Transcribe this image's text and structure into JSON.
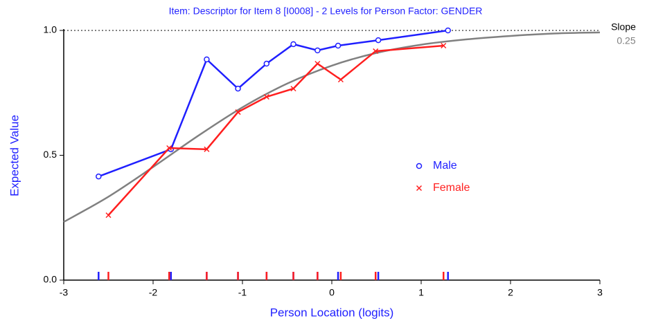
{
  "chart_data": {
    "type": "line",
    "title": "Item: Descriptor for Item 8 [I0008] - 2 Levels for Person Factor: GENDER",
    "x_label": "Person Location (logits)",
    "y_label": "Expected Value",
    "slope_label": "Slope",
    "slope": 0.25,
    "xlim": [
      -3,
      3
    ],
    "xticks": [
      -3,
      -2,
      -1,
      0,
      1,
      2,
      3
    ],
    "ylim": [
      0,
      1
    ],
    "yticks": [
      {
        "value": 0,
        "label": "0.0"
      },
      {
        "value": 0.5,
        "label": "0.5"
      },
      {
        "value": 1,
        "label": "1.0"
      }
    ],
    "curve": {
      "color": "#808080",
      "x": [
        -3,
        -2.5,
        -2,
        -1.5,
        -1,
        -0.5,
        0,
        0.5,
        1,
        1.5,
        2,
        2.5,
        3
      ],
      "values": [
        0.233,
        0.334,
        0.453,
        0.577,
        0.692,
        0.787,
        0.859,
        0.91,
        0.943,
        0.964,
        0.978,
        0.988,
        0.992
      ]
    },
    "series": [
      {
        "name": "Male",
        "color": "#1f1fff",
        "marker": "circle",
        "x": [
          -2.61,
          -1.8,
          -1.4,
          -1.05,
          -0.73,
          -0.43,
          -0.16,
          0.07,
          0.52,
          1.3
        ],
        "values": [
          0.415,
          0.524,
          0.884,
          0.767,
          0.867,
          0.945,
          0.92,
          0.939,
          0.961,
          1.0
        ]
      },
      {
        "name": "Female",
        "color": "#ff1f1f",
        "marker": "cross",
        "x": [
          -2.5,
          -1.82,
          -1.4,
          -1.05,
          -0.73,
          -0.43,
          -0.16,
          0.1,
          0.49,
          1.25
        ],
        "values": [
          0.26,
          0.529,
          0.524,
          0.673,
          0.734,
          0.767,
          0.867,
          0.803,
          0.917,
          0.939
        ]
      }
    ]
  }
}
